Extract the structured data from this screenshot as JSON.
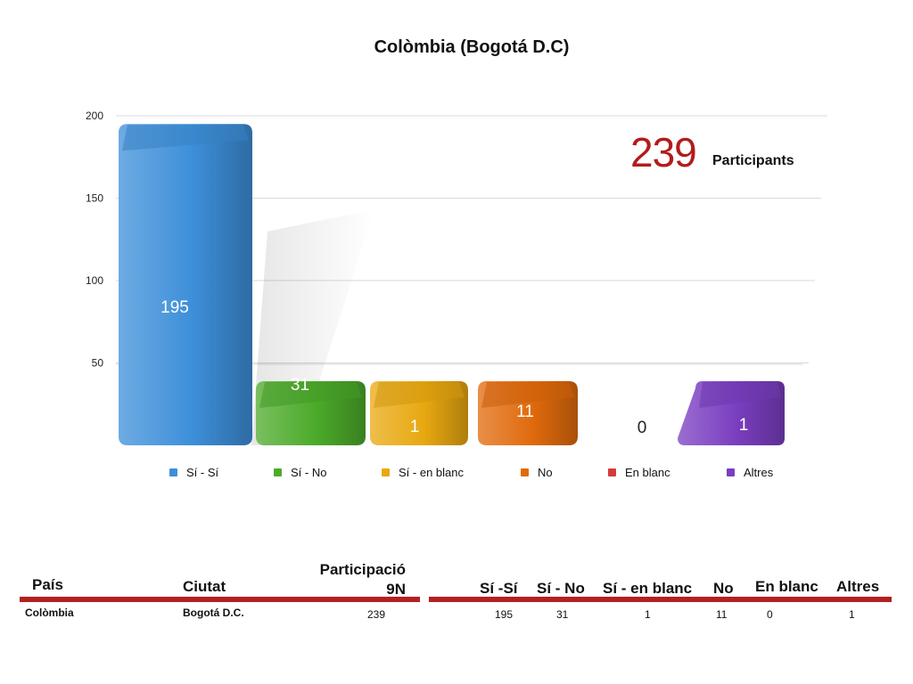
{
  "chart_data": {
    "type": "bar",
    "title": "Colòmbia (Bogotá D.C)",
    "categories": [
      "Sí - Sí",
      "Sí - No",
      "Sí - en blanc",
      "No",
      "En blanc",
      "Altres"
    ],
    "values": [
      195,
      31,
      1,
      11,
      0,
      1
    ],
    "data_labels": [
      "195",
      "31",
      "1",
      "11",
      "0",
      "1"
    ],
    "colors": [
      "#3d8fd9",
      "#4caa2a",
      "#e8a810",
      "#e06a0c",
      "#d43a3a",
      "#7a3ec0"
    ],
    "yticks": [
      "50",
      "100",
      "150",
      "200"
    ],
    "ylim": [
      0,
      200
    ],
    "grid": true,
    "legend_position": "bottom"
  },
  "participants": {
    "count": "239",
    "label": "Participants"
  },
  "table": {
    "left_headers": {
      "pais": "País",
      "ciutat": "Ciutat",
      "participacio_line1": "Participació",
      "participacio_line2": "9N"
    },
    "right_headers": [
      "Sí -Sí",
      "Sí - No",
      "Sí - en blanc",
      "No",
      "En blanc",
      "Altres"
    ],
    "row": {
      "pais": "Colòmbia",
      "ciutat": "Bogotá D.C.",
      "participacio": "239",
      "values": [
        "195",
        "31",
        "1",
        "11",
        "0",
        "1"
      ]
    }
  }
}
